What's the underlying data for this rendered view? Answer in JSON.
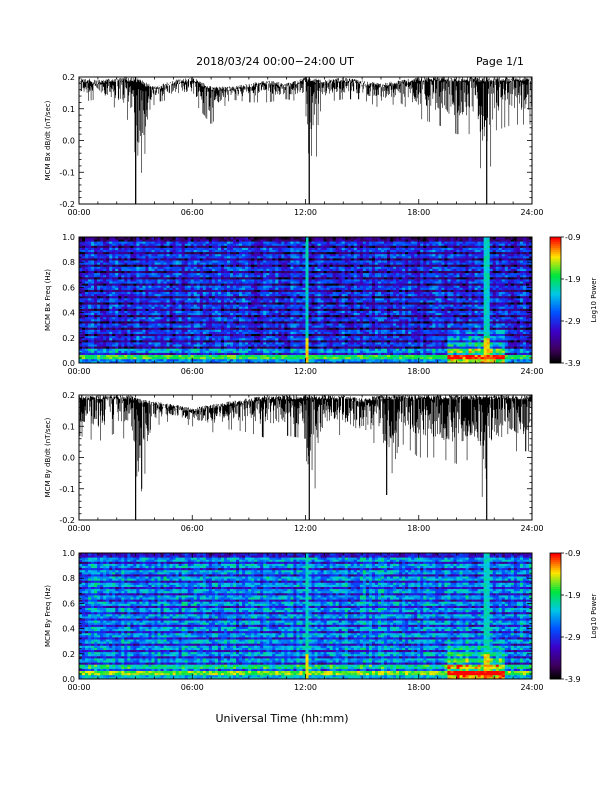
{
  "header": {
    "title": "2018/03/24  00:00−24:00 UT",
    "page": "Page 1/1"
  },
  "footer": {
    "xlabel": "Universal Time (hh:mm)"
  },
  "chart_data": [
    {
      "type": "line",
      "ylabel": "MCM Bx dB/dt (nT/sec)",
      "xlabel": "",
      "x_tick_labels": [
        "00:00",
        "06:00",
        "12:00",
        "18:00",
        "24:00"
      ],
      "x_ticks": [
        0,
        6,
        12,
        18,
        24
      ],
      "xlim": [
        0,
        24
      ],
      "ylim": [
        -0.2,
        0.2
      ],
      "y_ticks": [
        -0.2,
        -0.1,
        0.0,
        0.1,
        0.2
      ],
      "y_tick_labels": [
        "-0.2",
        "-0.1",
        "0.0",
        "0.1",
        "0.2"
      ],
      "series": [
        {
          "x": [
            0,
            1,
            2,
            2.8,
            3,
            4,
            5,
            6,
            7,
            8,
            9,
            10,
            11,
            12,
            12.2,
            13,
            14,
            15,
            16,
            17,
            18,
            19,
            20,
            21,
            21.6,
            22,
            23,
            24
          ],
          "y_upper": [
            0.2,
            0.19,
            0.2,
            0.2,
            0.2,
            0.17,
            0.19,
            0.2,
            0.17,
            0.17,
            0.18,
            0.19,
            0.18,
            0.2,
            0.2,
            0.19,
            0.2,
            0.19,
            0.18,
            0.19,
            0.2,
            0.2,
            0.2,
            0.2,
            0.2,
            0.2,
            0.2,
            0.2
          ],
          "y_lower": [
            0.12,
            0.13,
            0.1,
            0.05,
            -0.2,
            0.12,
            0.13,
            0.13,
            0.05,
            0.13,
            0.12,
            0.12,
            0.13,
            0.12,
            -0.21,
            0.12,
            0.13,
            0.13,
            0.1,
            0.12,
            0.07,
            0.05,
            0.02,
            0.02,
            -0.21,
            0.03,
            0.05,
            0.05
          ],
          "color": "#000000"
        }
      ]
    },
    {
      "type": "heatmap",
      "ylabel": "MCM Bx Freq (Hz)",
      "xlabel": "",
      "x_tick_labels": [
        "00:00",
        "06:00",
        "12:00",
        "18:00",
        "24:00"
      ],
      "x_ticks": [
        0,
        6,
        12,
        18,
        24
      ],
      "xlim": [
        0,
        24
      ],
      "ylim": [
        0,
        1.0
      ],
      "y_ticks": [
        0.0,
        0.2,
        0.4,
        0.6,
        0.8,
        1.0
      ],
      "y_tick_labels": [
        "0.0",
        "0.2",
        "0.4",
        "0.6",
        "0.8",
        "1.0"
      ],
      "colorbar": {
        "label": "Log10 Power",
        "ticks": [
          -0.9,
          -1.9,
          -2.9,
          -3.9
        ],
        "tick_labels": [
          "-0.9",
          "-1.9",
          "-2.9",
          "-3.9"
        ],
        "range": [
          -3.9,
          -0.9
        ]
      },
      "harmonic_bands_hz": [
        0.05,
        0.1,
        0.15,
        0.2,
        0.25,
        0.3,
        0.35,
        0.4,
        0.45,
        0.5,
        0.55,
        0.6,
        0.65,
        0.7,
        0.75,
        0.8,
        0.85,
        0.9,
        0.95
      ],
      "vertical_events_hr": [
        12.1,
        21.6
      ],
      "low_freq_enhancement_hr": [
        [
          19.5,
          22.5
        ]
      ],
      "background_level": -3.5,
      "low_freq_level": -2.3
    },
    {
      "type": "line",
      "ylabel": "MCM By dB/dt (nT/sec)",
      "xlabel": "",
      "x_tick_labels": [
        "00:00",
        "06:00",
        "12:00",
        "18:00",
        "24:00"
      ],
      "x_ticks": [
        0,
        6,
        12,
        18,
        24
      ],
      "xlim": [
        0,
        24
      ],
      "ylim": [
        -0.2,
        0.2
      ],
      "y_ticks": [
        -0.2,
        -0.1,
        0.0,
        0.1,
        0.2
      ],
      "y_tick_labels": [
        "-0.2",
        "-0.1",
        "0.0",
        "0.1",
        "0.2"
      ],
      "series": [
        {
          "x": [
            0,
            1,
            2,
            2.8,
            3,
            4,
            5,
            6,
            7,
            8,
            9,
            10,
            11,
            12,
            12.2,
            13,
            14,
            15,
            16,
            16.3,
            17,
            18,
            19,
            20,
            21,
            21.6,
            22,
            23,
            24
          ],
          "y_upper": [
            0.2,
            0.2,
            0.2,
            0.2,
            0.19,
            0.18,
            0.17,
            0.16,
            0.17,
            0.18,
            0.19,
            0.2,
            0.2,
            0.2,
            0.2,
            0.2,
            0.2,
            0.19,
            0.2,
            0.2,
            0.2,
            0.2,
            0.2,
            0.2,
            0.2,
            0.2,
            0.2,
            0.2,
            0.2
          ],
          "y_lower": [
            0.07,
            0.05,
            0.08,
            0.04,
            -0.2,
            0.1,
            0.12,
            0.1,
            0.08,
            0.09,
            0.08,
            0.06,
            0.07,
            0.06,
            -0.21,
            0.08,
            0.07,
            0.04,
            0.05,
            -0.12,
            0.05,
            0.0,
            0.0,
            -0.02,
            0.0,
            -0.21,
            0.0,
            0.02,
            0.02
          ],
          "color": "#000000"
        }
      ]
    },
    {
      "type": "heatmap",
      "ylabel": "MCM By Freq (Hz)",
      "xlabel": "",
      "x_tick_labels": [
        "00:00",
        "06:00",
        "12:00",
        "18:00",
        "24:00"
      ],
      "x_ticks": [
        0,
        6,
        12,
        18,
        24
      ],
      "xlim": [
        0,
        24
      ],
      "ylim": [
        0,
        1.0
      ],
      "y_ticks": [
        0.0,
        0.2,
        0.4,
        0.6,
        0.8,
        1.0
      ],
      "y_tick_labels": [
        "0.0",
        "0.2",
        "0.4",
        "0.6",
        "0.8",
        "1.0"
      ],
      "colorbar": {
        "label": "Log10 Power",
        "ticks": [
          -0.9,
          -1.9,
          -2.9,
          -3.9
        ],
        "tick_labels": [
          "-0.9",
          "-1.9",
          "-2.9",
          "-3.9"
        ],
        "range": [
          -3.9,
          -0.9
        ]
      },
      "harmonic_bands_hz": [
        0.05,
        0.1,
        0.15,
        0.2,
        0.25,
        0.3,
        0.35,
        0.4,
        0.45,
        0.5,
        0.55,
        0.6,
        0.65,
        0.7,
        0.75,
        0.8,
        0.85,
        0.9,
        0.95
      ],
      "vertical_events_hr": [
        12.1,
        21.6
      ],
      "low_freq_enhancement_hr": [
        [
          19.5,
          22.5
        ]
      ],
      "background_level": -3.1,
      "low_freq_level": -2.1
    }
  ]
}
